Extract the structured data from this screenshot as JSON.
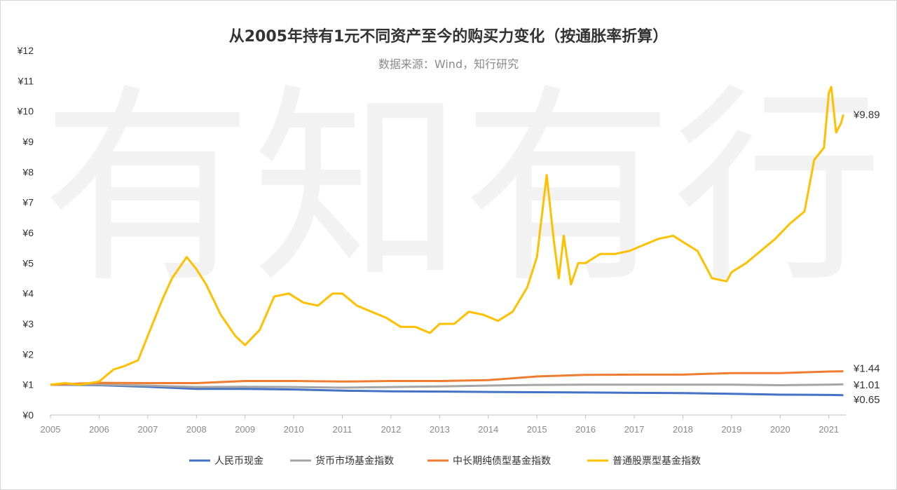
{
  "chart_data": {
    "type": "line",
    "title": "从2005年持有1元不同资产至今的购买力变化（按通胀率折算）",
    "subtitle": "数据来源：Wind，知行研究",
    "watermark": [
      "有",
      "知",
      "有",
      "行"
    ],
    "xlabel": "",
    "ylabel": "",
    "xlim": [
      2005.0,
      2021.35
    ],
    "ylim": [
      0,
      12
    ],
    "y_ticks": [
      "¥0",
      "¥1",
      "¥2",
      "¥3",
      "¥4",
      "¥5",
      "¥6",
      "¥7",
      "¥8",
      "¥9",
      "¥10",
      "¥11",
      "¥12"
    ],
    "x_ticks": [
      "2005",
      "2006",
      "2007",
      "2008",
      "2009",
      "2010",
      "2011",
      "2012",
      "2013",
      "2014",
      "2015",
      "2016",
      "2017",
      "2018",
      "2019",
      "2020",
      "2021"
    ],
    "grid": false,
    "legend_position": "bottom",
    "series": [
      {
        "name": "人民币现金",
        "color": "#4472c4",
        "end_label": "¥0.65",
        "x": [
          2005,
          2006,
          2007,
          2008,
          2009,
          2010,
          2011,
          2012,
          2013,
          2014,
          2015,
          2016,
          2017,
          2018,
          2019,
          2020,
          2021,
          2021.3
        ],
        "y": [
          1.0,
          0.98,
          0.93,
          0.86,
          0.86,
          0.84,
          0.8,
          0.78,
          0.77,
          0.76,
          0.75,
          0.74,
          0.73,
          0.72,
          0.7,
          0.67,
          0.66,
          0.65
        ]
      },
      {
        "name": "货币市场基金指数",
        "color": "#a5a5a5",
        "end_label": "¥1.01",
        "x": [
          2005,
          2006,
          2007,
          2008,
          2009,
          2010,
          2011,
          2012,
          2013,
          2014,
          2015,
          2016,
          2017,
          2018,
          2019,
          2020,
          2021,
          2021.3
        ],
        "y": [
          1.0,
          1.0,
          0.97,
          0.92,
          0.93,
          0.92,
          0.9,
          0.92,
          0.94,
          0.97,
          0.99,
          1.0,
          1.0,
          1.0,
          1.0,
          0.98,
          1.0,
          1.01
        ]
      },
      {
        "name": "中长期纯债型基金指数",
        "color": "#ed7d31",
        "end_label": "¥1.44",
        "x": [
          2005,
          2006,
          2007,
          2008,
          2009,
          2010,
          2011,
          2012,
          2013,
          2014,
          2015,
          2016,
          2017,
          2018,
          2019,
          2020,
          2021,
          2021.3
        ],
        "y": [
          1.0,
          1.06,
          1.05,
          1.05,
          1.12,
          1.12,
          1.1,
          1.12,
          1.12,
          1.15,
          1.27,
          1.32,
          1.33,
          1.33,
          1.38,
          1.38,
          1.43,
          1.44
        ]
      },
      {
        "name": "普通股票型基金指数",
        "color": "#ffc000",
        "end_label": "¥9.89",
        "x": [
          2005,
          2005.3,
          2005.6,
          2006,
          2006.3,
          2006.5,
          2006.8,
          2007,
          2007.3,
          2007.5,
          2007.8,
          2008,
          2008.2,
          2008.5,
          2008.8,
          2009,
          2009.3,
          2009.6,
          2009.9,
          2010.2,
          2010.5,
          2010.8,
          2011,
          2011.3,
          2011.6,
          2011.9,
          2012.2,
          2012.5,
          2012.8,
          2013,
          2013.3,
          2013.6,
          2013.9,
          2014.2,
          2014.5,
          2014.8,
          2015,
          2015.2,
          2015.35,
          2015.45,
          2015.55,
          2015.7,
          2015.85,
          2016,
          2016.3,
          2016.6,
          2016.9,
          2017.2,
          2017.5,
          2017.8,
          2018,
          2018.3,
          2018.6,
          2018.9,
          2019,
          2019.3,
          2019.6,
          2019.9,
          2020.2,
          2020.5,
          2020.7,
          2020.9,
          2021,
          2021.05,
          2021.15,
          2021.25,
          2021.3
        ],
        "y": [
          1.0,
          1.05,
          1.0,
          1.1,
          1.5,
          1.6,
          1.8,
          2.6,
          3.8,
          4.5,
          5.2,
          4.8,
          4.3,
          3.3,
          2.6,
          2.3,
          2.8,
          3.9,
          4.0,
          3.7,
          3.6,
          4.0,
          4.0,
          3.6,
          3.4,
          3.2,
          2.9,
          2.9,
          2.7,
          3.0,
          3.0,
          3.4,
          3.3,
          3.1,
          3.4,
          4.2,
          5.2,
          7.9,
          5.7,
          4.5,
          5.9,
          4.3,
          5.0,
          5.0,
          5.3,
          5.3,
          5.4,
          5.6,
          5.8,
          5.9,
          5.7,
          5.4,
          4.5,
          4.4,
          4.7,
          5.0,
          5.4,
          5.8,
          6.3,
          6.7,
          8.4,
          8.8,
          10.6,
          10.8,
          9.3,
          9.6,
          9.89
        ]
      }
    ]
  }
}
